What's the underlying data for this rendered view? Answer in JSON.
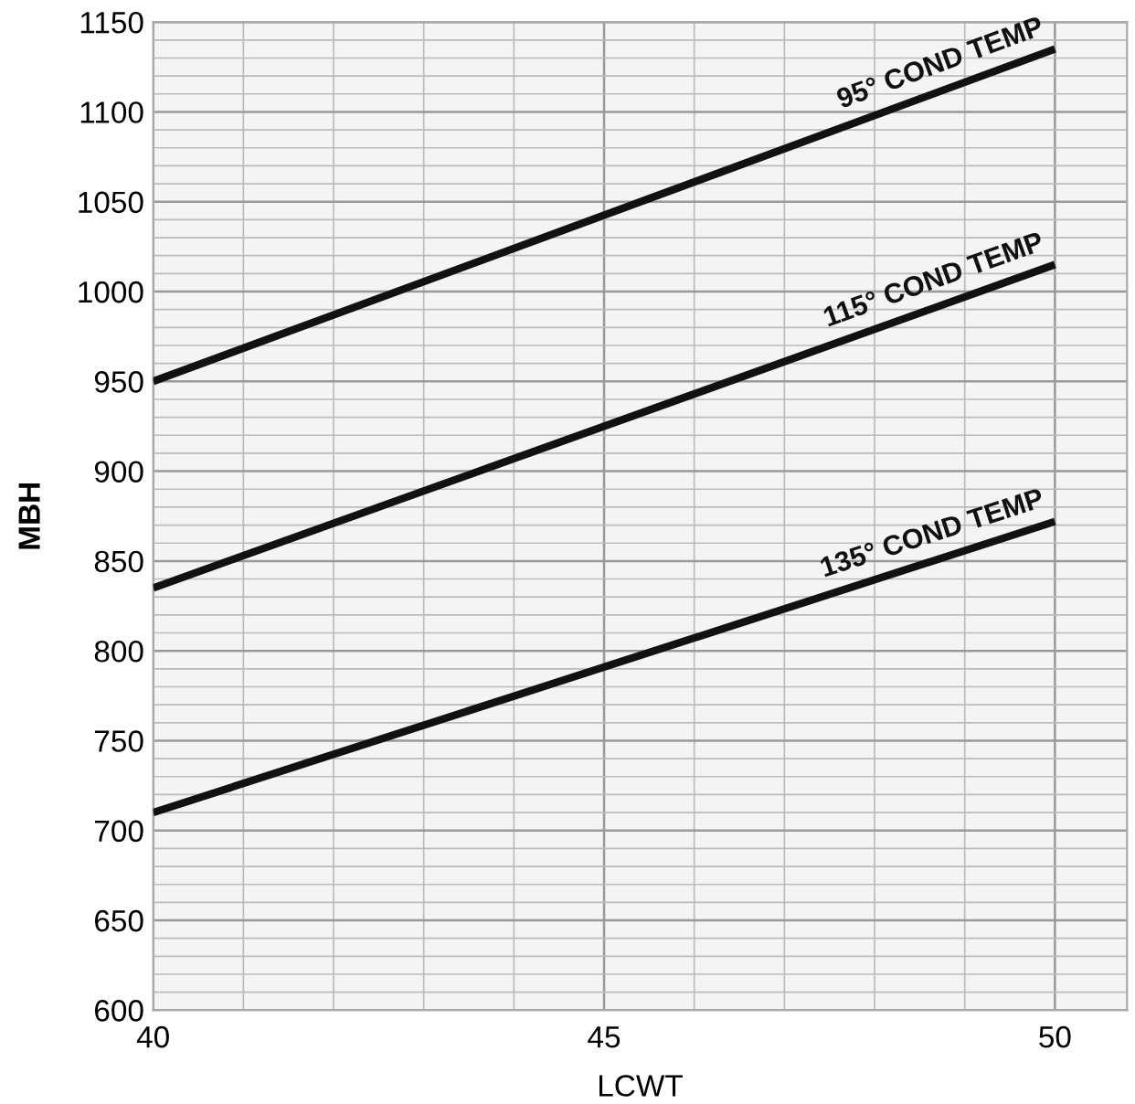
{
  "chart_data": {
    "type": "line",
    "xlabel": "LCWT",
    "ylabel": "MBH",
    "x": [
      40,
      50
    ],
    "series": [
      {
        "name": "95° COND TEMP",
        "color": "#111111",
        "values": [
          950,
          1135
        ]
      },
      {
        "name": "115° COND TEMP",
        "color": "#111111",
        "values": [
          835,
          1015
        ]
      },
      {
        "name": "135° COND TEMP",
        "color": "#111111",
        "values": [
          710,
          872
        ]
      }
    ],
    "xlim": [
      40,
      50.8
    ],
    "ylim": [
      600,
      1150
    ],
    "xticks": [
      40,
      45,
      50
    ],
    "yticks": [
      600,
      650,
      700,
      750,
      800,
      850,
      900,
      950,
      1000,
      1050,
      1100,
      1150
    ],
    "grid": true,
    "line_style": "solid",
    "marker": "none"
  }
}
